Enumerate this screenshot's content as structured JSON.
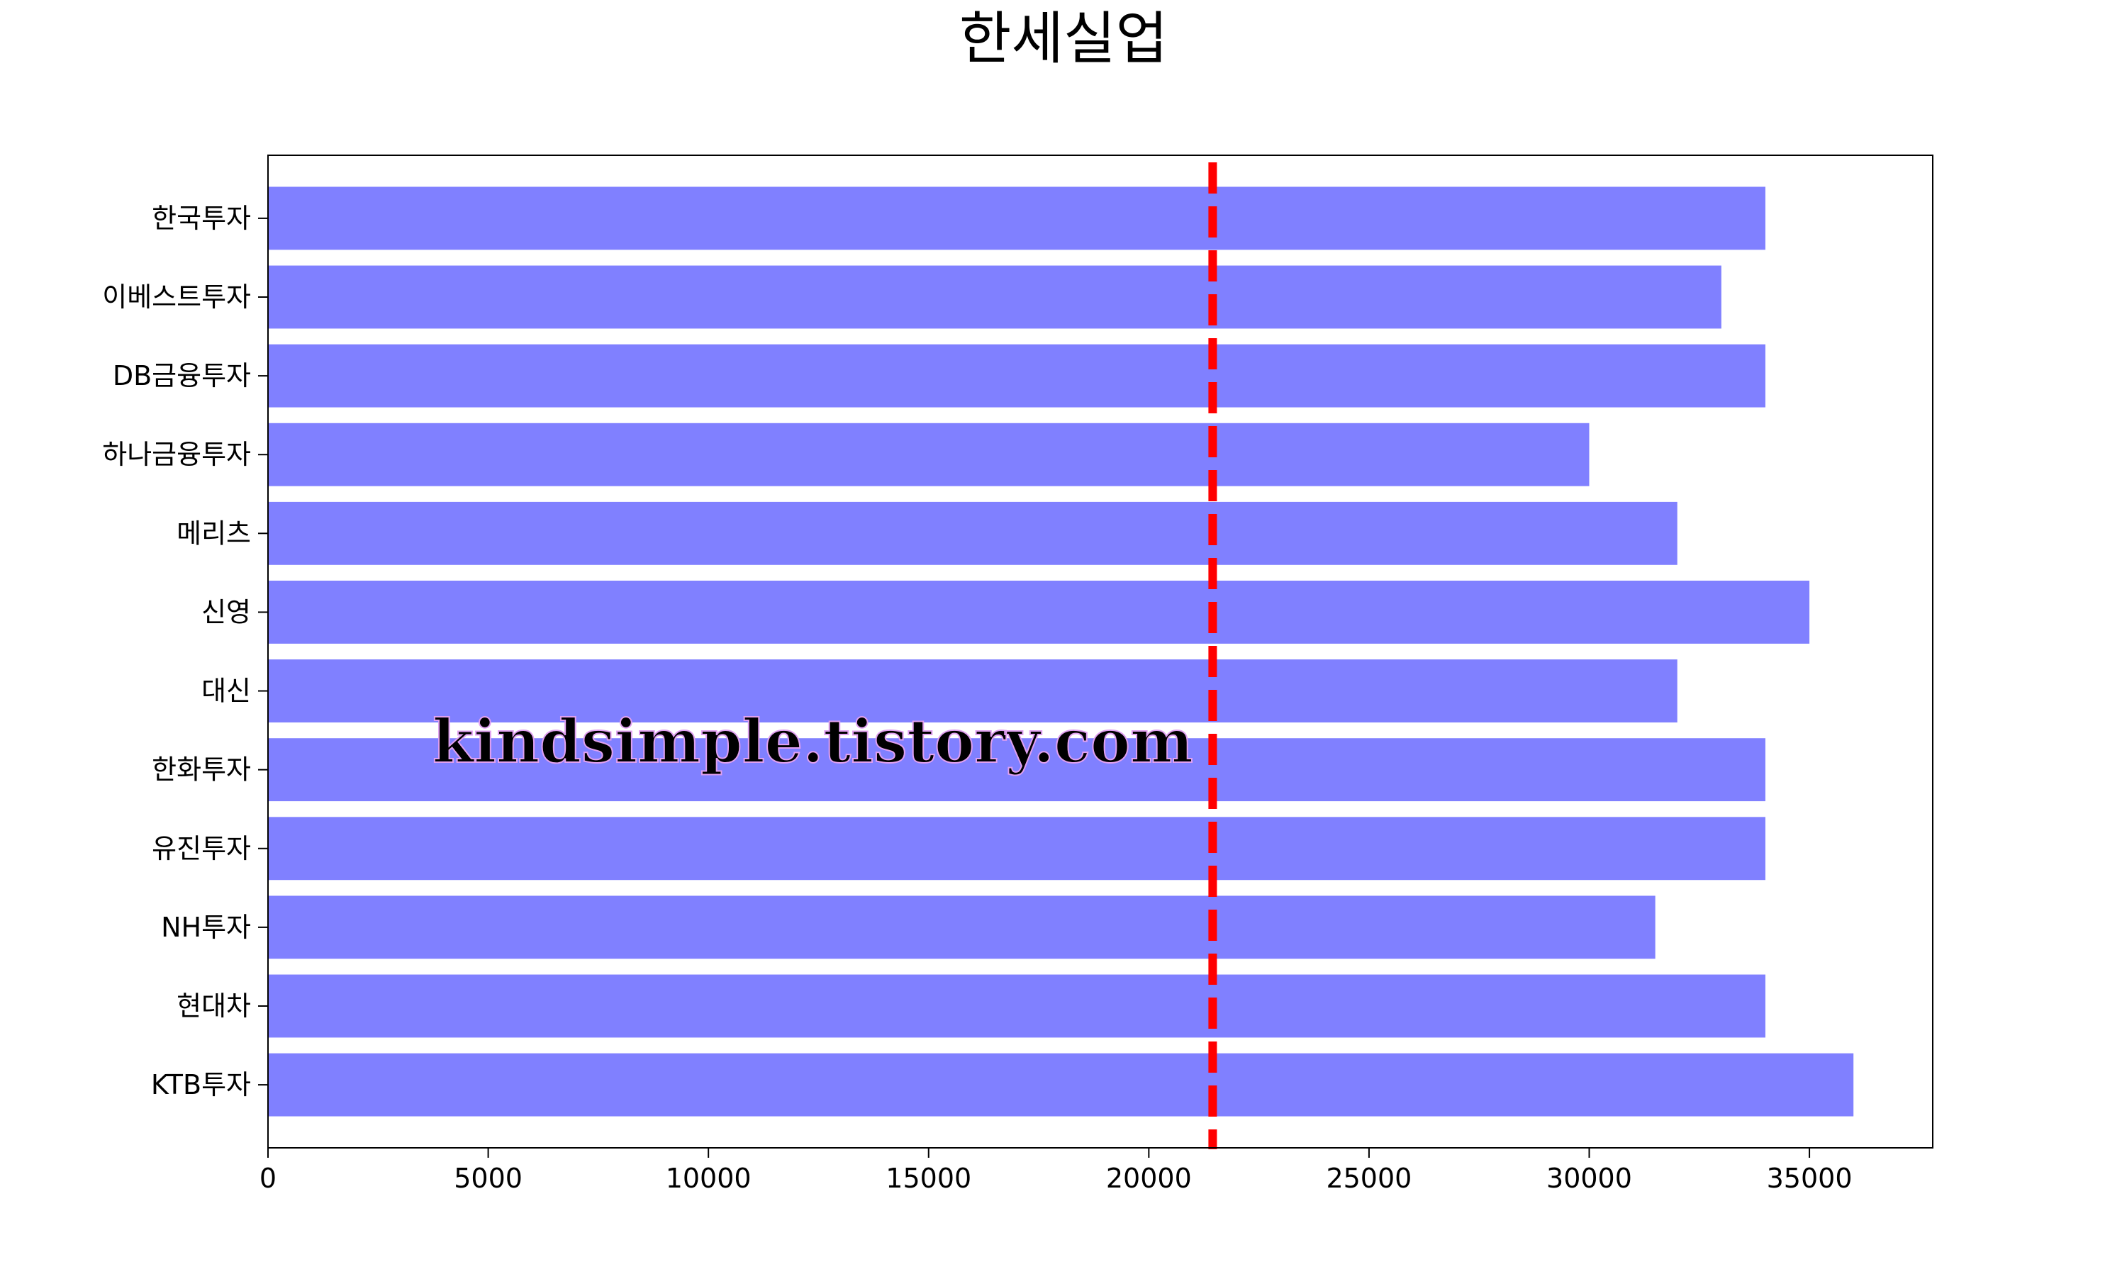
{
  "chart_data": {
    "type": "bar",
    "orientation": "horizontal",
    "title": "한세실업",
    "categories": [
      "한국투자",
      "이베스트투자",
      "DB금융투자",
      "하나금융투자",
      "메리츠",
      "신영",
      "대신",
      "한화투자",
      "유진투자",
      "NH투자",
      "현대차",
      "KTB투자"
    ],
    "values": [
      34000,
      33000,
      34000,
      30000,
      32000,
      35000,
      32000,
      34000,
      34000,
      31500,
      34000,
      36000
    ],
    "xlabel": "",
    "ylabel": "",
    "xlim": [
      0,
      37800
    ],
    "xticks": [
      0,
      5000,
      10000,
      15000,
      20000,
      25000,
      30000,
      35000
    ],
    "reference_line": {
      "value": 21450,
      "style": "dashed",
      "color": "#ff0000"
    },
    "bar_color": "#8080ff",
    "grid": false,
    "legend": "none"
  },
  "watermark": {
    "text": "kindsimple.tistory.com",
    "color": "#e0a0f0"
  }
}
